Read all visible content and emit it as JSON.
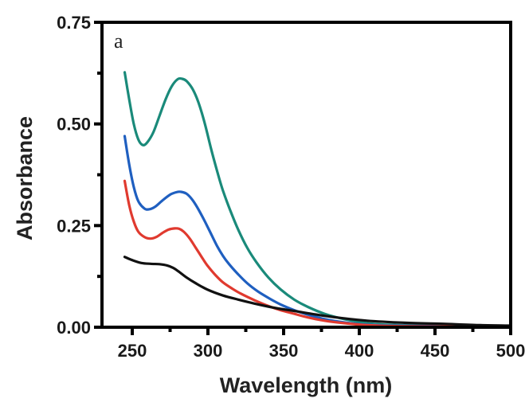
{
  "chart_data": {
    "type": "line",
    "title": "",
    "panel_label": "a",
    "xlabel": "Wavelength (nm)",
    "ylabel": "Absorbance",
    "xlim": [
      230,
      500
    ],
    "ylim": [
      0,
      0.75
    ],
    "x_ticks": [
      250,
      300,
      350,
      400,
      450,
      500
    ],
    "x_tick_labels": [
      "250",
      "300",
      "350",
      "400",
      "450",
      "500"
    ],
    "x_minor_ticks": [
      275,
      325,
      375,
      425,
      475
    ],
    "y_ticks": [
      0,
      0.25,
      0.5,
      0.75
    ],
    "y_tick_labels": [
      "0.00",
      "0.25",
      "0.50",
      "0.75"
    ],
    "y_minor_ticks": [
      0.125,
      0.375,
      0.625
    ],
    "grid": false,
    "legend": "none",
    "series": [
      {
        "name": "teal",
        "color": "#1a8a7a",
        "x": [
          245,
          248,
          251,
          254,
          257,
          260,
          264,
          268,
          272,
          276,
          280,
          283,
          286,
          290,
          294,
          298,
          302,
          306,
          310,
          315,
          320,
          326,
          332,
          340,
          348,
          357,
          366,
          377,
          390,
          405,
          420,
          440,
          460,
          480,
          500
        ],
        "y": [
          0.627,
          0.56,
          0.5,
          0.462,
          0.448,
          0.455,
          0.48,
          0.52,
          0.56,
          0.592,
          0.61,
          0.611,
          0.605,
          0.585,
          0.55,
          0.5,
          0.44,
          0.385,
          0.335,
          0.285,
          0.24,
          0.195,
          0.16,
          0.122,
          0.093,
          0.068,
          0.05,
          0.033,
          0.02,
          0.01,
          0.006,
          0.004,
          0.003,
          0.002,
          0.002
        ]
      },
      {
        "name": "blue",
        "color": "#1f5fc0",
        "x": [
          245,
          248,
          251,
          254,
          258,
          261,
          265,
          270,
          275,
          279,
          282,
          286,
          290,
          294,
          298,
          302,
          306,
          310,
          314,
          320,
          326,
          333,
          340,
          348,
          357,
          366,
          377,
          390,
          405,
          420,
          440,
          460,
          480,
          500
        ],
        "y": [
          0.47,
          0.4,
          0.345,
          0.31,
          0.292,
          0.29,
          0.296,
          0.312,
          0.326,
          0.332,
          0.333,
          0.328,
          0.312,
          0.288,
          0.26,
          0.23,
          0.2,
          0.175,
          0.155,
          0.13,
          0.108,
          0.088,
          0.072,
          0.056,
          0.042,
          0.031,
          0.02,
          0.012,
          0.006,
          0.004,
          0.003,
          0.002,
          0.002,
          0.002
        ]
      },
      {
        "name": "red",
        "color": "#e03a2f",
        "x": [
          245,
          248,
          251,
          254,
          258,
          262,
          266,
          270,
          274,
          278,
          281,
          284,
          288,
          292,
          296,
          300,
          305,
          310,
          316,
          322,
          331,
          340,
          348,
          357,
          366,
          377,
          390,
          405,
          420,
          440,
          460,
          480,
          500
        ],
        "y": [
          0.36,
          0.3,
          0.26,
          0.235,
          0.222,
          0.218,
          0.222,
          0.232,
          0.24,
          0.243,
          0.242,
          0.235,
          0.218,
          0.195,
          0.172,
          0.15,
          0.128,
          0.11,
          0.095,
          0.082,
          0.066,
          0.052,
          0.042,
          0.033,
          0.024,
          0.016,
          0.01,
          0.005,
          0.003,
          0.002,
          0.002,
          0.002,
          0.002
        ]
      },
      {
        "name": "black",
        "color": "#111111",
        "x": [
          245,
          250,
          256,
          262,
          268,
          273,
          277,
          281,
          286,
          292,
          300,
          310,
          320,
          331,
          345,
          357,
          370,
          385,
          405,
          430,
          457,
          480,
          500
        ],
        "y": [
          0.173,
          0.165,
          0.158,
          0.156,
          0.155,
          0.152,
          0.146,
          0.136,
          0.122,
          0.108,
          0.092,
          0.078,
          0.068,
          0.058,
          0.047,
          0.04,
          0.032,
          0.024,
          0.016,
          0.011,
          0.008,
          0.005,
          0.004
        ]
      }
    ]
  }
}
